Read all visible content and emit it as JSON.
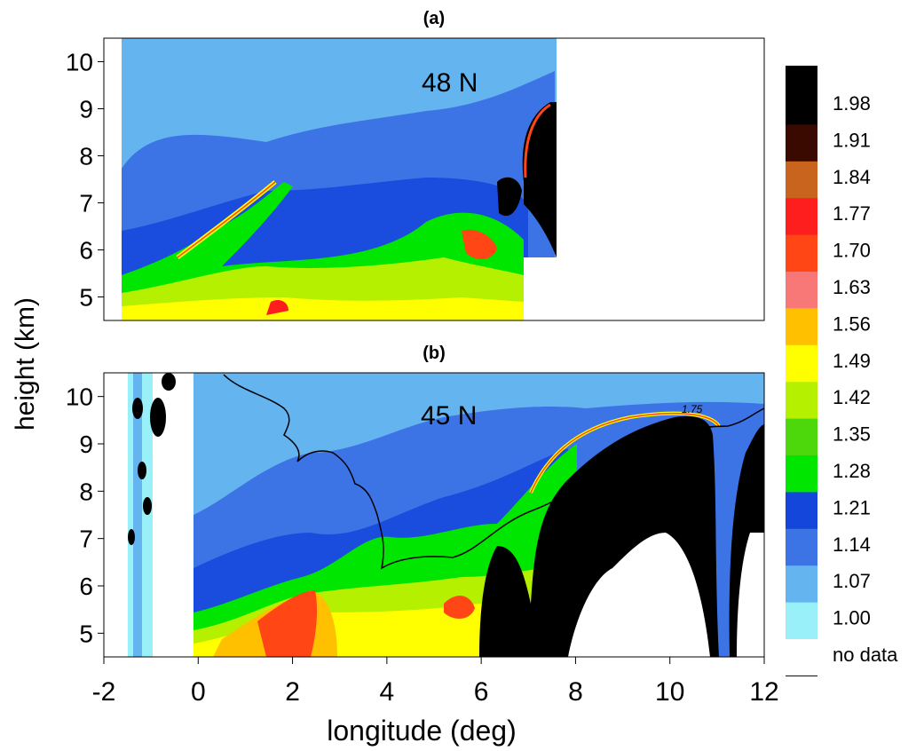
{
  "chart_data": {
    "type": "heatmap",
    "panels": [
      {
        "label": "(a)",
        "annotation": "48 N",
        "xlim": [
          -2,
          12
        ],
        "ylim": [
          4.5,
          10.5
        ],
        "data_extent_x": [
          -1.55,
          7.6
        ]
      },
      {
        "label": "(b)",
        "annotation": "45 N",
        "xlim": [
          -2,
          12
        ],
        "ylim": [
          4.5,
          10.5
        ],
        "data_extent_x": [
          -1.5,
          12
        ],
        "contour_label": "1.75"
      }
    ],
    "ylabel": "height (km)",
    "xlabel": "longitude (deg)",
    "yticks": [
      5,
      6,
      7,
      8,
      9,
      10
    ],
    "xticks": [
      -2,
      0,
      2,
      4,
      6,
      8,
      10,
      12
    ],
    "colorbar": {
      "levels": [
        {
          "label": "1.98",
          "color": "#000000"
        },
        {
          "label": "1.91",
          "color": "#3a0a00"
        },
        {
          "label": "1.84",
          "color": "#c8641e"
        },
        {
          "label": "1.77",
          "color": "#ff1e1e"
        },
        {
          "label": "1.70",
          "color": "#ff4614"
        },
        {
          "label": "1.63",
          "color": "#f87878"
        },
        {
          "label": "1.56",
          "color": "#ffc000"
        },
        {
          "label": "1.49",
          "color": "#ffff00"
        },
        {
          "label": "1.42",
          "color": "#b4f000"
        },
        {
          "label": "1.35",
          "color": "#4cd80a"
        },
        {
          "label": "1.28",
          "color": "#00e600"
        },
        {
          "label": "1.21",
          "color": "#1446dc"
        },
        {
          "label": "1.14",
          "color": "#3c74e6"
        },
        {
          "label": "1.07",
          "color": "#64b4f0"
        },
        {
          "label": "1.00",
          "color": "#9af0f8"
        },
        {
          "label": "no data",
          "color": "#ffffff"
        }
      ],
      "top_color": "#000000"
    }
  }
}
